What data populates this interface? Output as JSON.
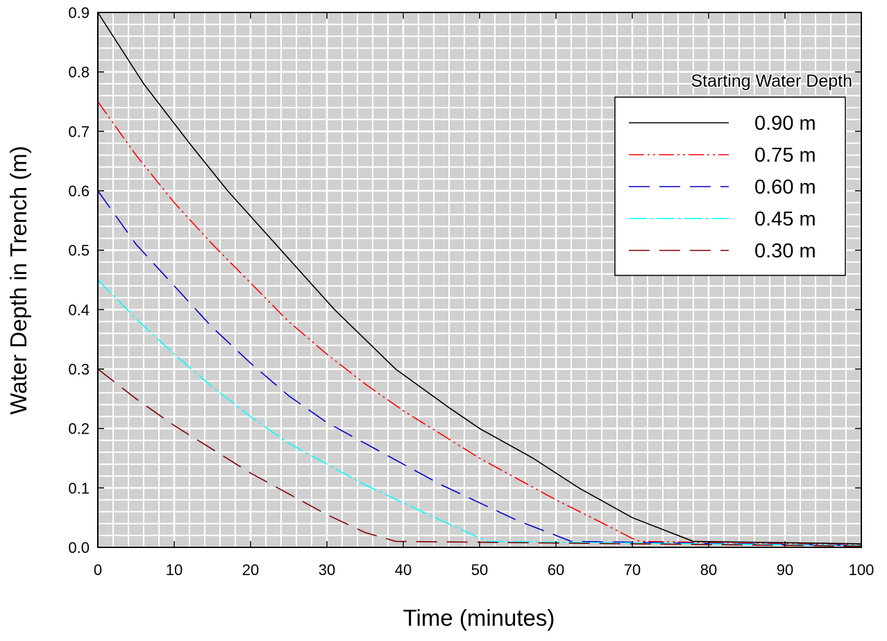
{
  "chart_data": {
    "type": "line",
    "xlabel": "Time (minutes)",
    "ylabel": "Water Depth in Trench (m)",
    "xlim": [
      0,
      100
    ],
    "ylim": [
      0.0,
      0.9
    ],
    "xticks": [
      "0",
      "10",
      "20",
      "30",
      "40",
      "50",
      "60",
      "70",
      "80",
      "90",
      "100"
    ],
    "yticks": [
      "0.0",
      "0.1",
      "0.2",
      "0.3",
      "0.4",
      "0.5",
      "0.6",
      "0.7",
      "0.8",
      "0.9"
    ],
    "grid": true,
    "legend": {
      "title": "Starting Water Depth",
      "position": "top-right"
    },
    "series": [
      {
        "name": "0.90 m",
        "color": "#000000",
        "dash": "solid",
        "x": [
          0,
          6,
          12,
          17,
          24,
          31,
          39,
          46,
          50,
          57,
          63,
          70,
          78,
          100
        ],
        "y": [
          0.9,
          0.78,
          0.68,
          0.6,
          0.5,
          0.4,
          0.3,
          0.235,
          0.2,
          0.15,
          0.1,
          0.05,
          0.01,
          0.006
        ]
      },
      {
        "name": "0.75 m",
        "color": "#ff0000",
        "dash": "dash-dot-dot",
        "x": [
          0,
          5,
          10,
          15,
          20,
          25,
          30,
          35,
          40,
          45,
          50,
          55,
          60,
          65,
          70,
          71,
          100
        ],
        "y": [
          0.75,
          0.66,
          0.58,
          0.51,
          0.445,
          0.38,
          0.325,
          0.275,
          0.23,
          0.19,
          0.15,
          0.115,
          0.08,
          0.048,
          0.015,
          0.01,
          0.004
        ]
      },
      {
        "name": "0.60 m",
        "color": "#0000cc",
        "dash": "long-dash",
        "x": [
          0,
          5,
          10,
          15,
          20,
          25,
          30,
          35,
          40,
          45,
          50,
          55,
          62,
          100
        ],
        "y": [
          0.6,
          0.51,
          0.44,
          0.37,
          0.31,
          0.255,
          0.21,
          0.175,
          0.14,
          0.105,
          0.075,
          0.045,
          0.01,
          0.003
        ]
      },
      {
        "name": "0.45 m",
        "color": "#00ffff",
        "dash": "dash-dot",
        "x": [
          0,
          5,
          10,
          15,
          20,
          25,
          30,
          35,
          40,
          45,
          51,
          100
        ],
        "y": [
          0.45,
          0.385,
          0.325,
          0.27,
          0.22,
          0.175,
          0.14,
          0.105,
          0.075,
          0.045,
          0.01,
          0.003
        ]
      },
      {
        "name": "0.30 m",
        "color": "#800000",
        "dash": "long-dash",
        "x": [
          0,
          5,
          10,
          15,
          20,
          25,
          30,
          35,
          39,
          100
        ],
        "y": [
          0.3,
          0.25,
          0.205,
          0.165,
          0.125,
          0.09,
          0.055,
          0.025,
          0.01,
          0.002
        ]
      }
    ]
  }
}
